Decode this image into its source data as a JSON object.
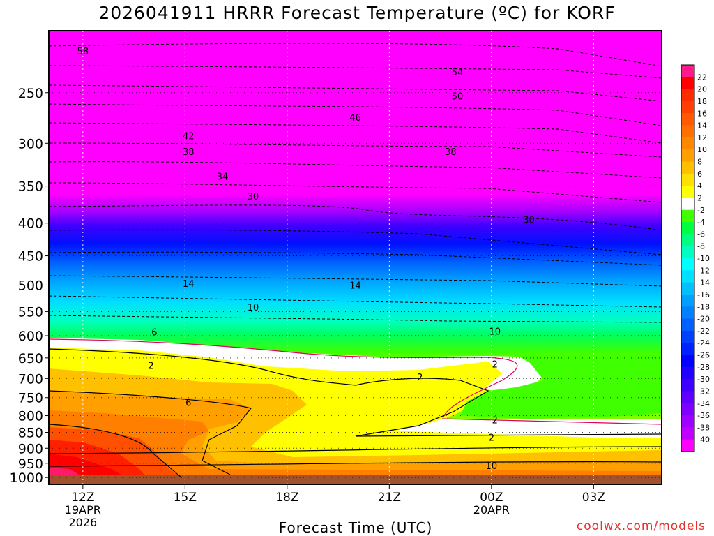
{
  "chart_data": {
    "type": "heatmap",
    "title": "2026041911 HRRR Forecast Temperature (ºC) for KORF",
    "xlabel": "Forecast Time (UTC)",
    "ylabel": "",
    "credit": "coolwx.com/models",
    "y_ticks": [
      {
        "label": "250",
        "value": 250
      },
      {
        "label": "300",
        "value": 300
      },
      {
        "label": "350",
        "value": 350
      },
      {
        "label": "400",
        "value": 400
      },
      {
        "label": "450",
        "value": 450
      },
      {
        "label": "500",
        "value": 500
      },
      {
        "label": "550",
        "value": 550
      },
      {
        "label": "600",
        "value": 600
      },
      {
        "label": "650",
        "value": 650
      },
      {
        "label": "700",
        "value": 700
      },
      {
        "label": "750",
        "value": 750
      },
      {
        "label": "800",
        "value": 800
      },
      {
        "label": "850",
        "value": 850
      },
      {
        "label": "900",
        "value": 900
      },
      {
        "label": "950",
        "value": 950
      },
      {
        "label": "1000",
        "value": 1000
      }
    ],
    "x_ticks": [
      {
        "hour": 0,
        "lines": [
          "12Z",
          "19APR",
          "2026"
        ]
      },
      {
        "hour": 3,
        "lines": [
          "15Z"
        ]
      },
      {
        "hour": 6,
        "lines": [
          "18Z"
        ]
      },
      {
        "hour": 9,
        "lines": [
          "21Z"
        ]
      },
      {
        "hour": 12,
        "lines": [
          "00Z",
          "20APR"
        ]
      },
      {
        "hour": 15,
        "lines": [
          "03Z"
        ]
      }
    ],
    "x_range_hours": [
      -1,
      17
    ],
    "y_range_hPa": [
      200,
      1025
    ],
    "colorbar": {
      "levels": [
        "22",
        "20",
        "18",
        "16",
        "14",
        "12",
        "10",
        "8",
        "6",
        "4",
        "2",
        "-2",
        "-4",
        "-6",
        "-8",
        "-10",
        "-12",
        "-14",
        "-16",
        "-18",
        "-20",
        "-22",
        "-24",
        "-26",
        "-28",
        "-30",
        "-32",
        "-34",
        "-36",
        "-38",
        "-40"
      ],
      "colors": [
        "#ff1a8c",
        "#ff0000",
        "#ff2a00",
        "#ff4000",
        "#ff5a00",
        "#ff7000",
        "#ff8800",
        "#ffa000",
        "#ffc000",
        "#ffe000",
        "#ffff00",
        "#ffffff",
        "#40ff00",
        "#00ff40",
        "#00ff80",
        "#00ffbf",
        "#00ffff",
        "#00e0ff",
        "#00c0ff",
        "#00a0ff",
        "#0080ff",
        "#0060ff",
        "#0040ff",
        "#0020ff",
        "#0000ff",
        "#2000ff",
        "#4000ff",
        "#6000ff",
        "#8000ff",
        "#a000ff",
        "#c000ff",
        "#ff00ff"
      ]
    },
    "contour_labels": [
      {
        "text": "58",
        "hour": 0.0,
        "p": 215
      },
      {
        "text": "54",
        "hour": 11.0,
        "p": 232
      },
      {
        "text": "50",
        "hour": 11.0,
        "p": 253
      },
      {
        "text": "46",
        "hour": 8.0,
        "p": 273
      },
      {
        "text": "42",
        "hour": 3.1,
        "p": 292
      },
      {
        "text": "38",
        "hour": 3.1,
        "p": 309
      },
      {
        "text": "38",
        "hour": 10.8,
        "p": 309
      },
      {
        "text": "34",
        "hour": 4.1,
        "p": 338
      },
      {
        "text": "30",
        "hour": 5.0,
        "p": 363
      },
      {
        "text": "30",
        "hour": 13.1,
        "p": 395
      },
      {
        "text": "14",
        "hour": 3.1,
        "p": 497
      },
      {
        "text": "14",
        "hour": 8.0,
        "p": 500
      },
      {
        "text": "10",
        "hour": 5.0,
        "p": 541
      },
      {
        "text": "10",
        "hour": 12.1,
        "p": 590
      },
      {
        "text": "6",
        "hour": 2.1,
        "p": 592
      },
      {
        "text": "2",
        "hour": 2.0,
        "p": 668
      },
      {
        "text": "2",
        "hour": 12.1,
        "p": 664
      },
      {
        "text": "2",
        "hour": 9.9,
        "p": 696
      },
      {
        "text": "6",
        "hour": 3.1,
        "p": 763
      },
      {
        "text": "2",
        "hour": 12.1,
        "p": 812
      },
      {
        "text": "2",
        "hour": 12.0,
        "p": 865
      },
      {
        "text": "10",
        "hour": 12.0,
        "p": 958
      }
    ],
    "legend": "right"
  }
}
